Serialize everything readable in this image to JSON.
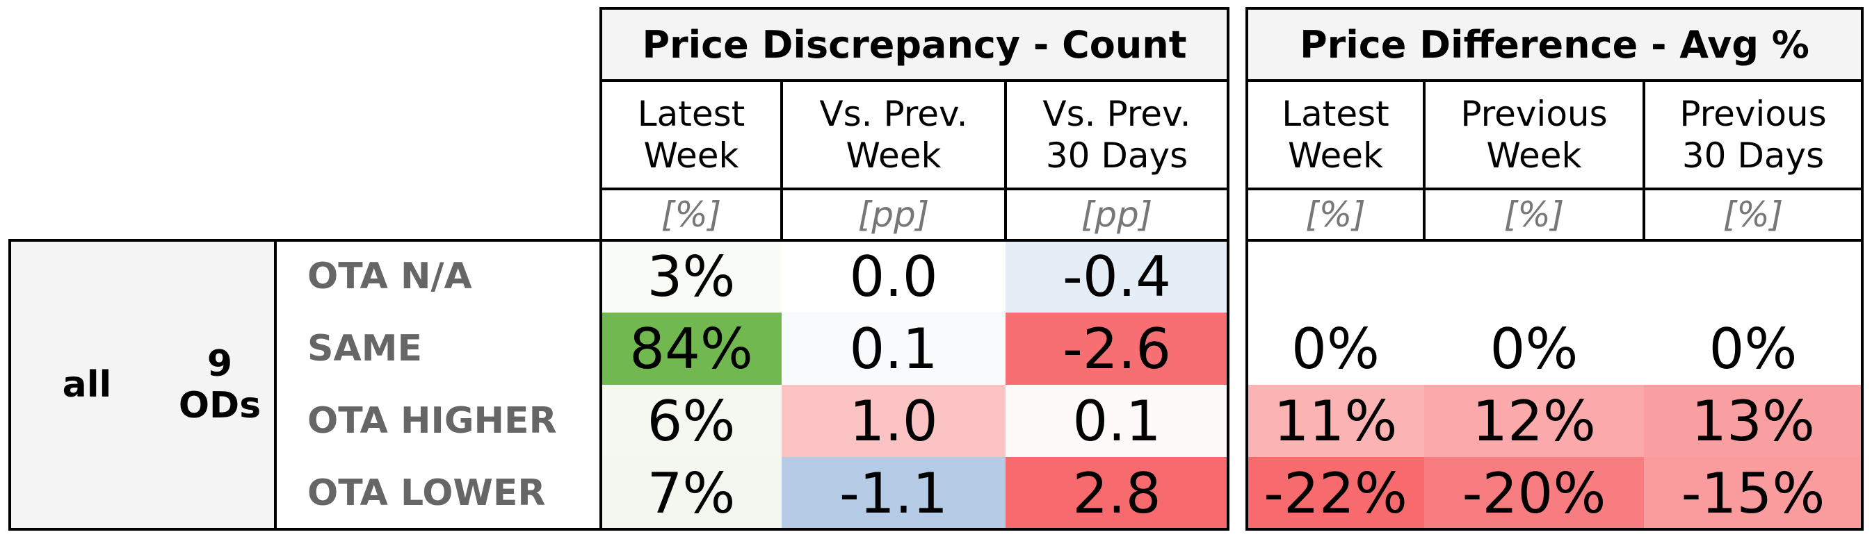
{
  "chart_data": {
    "type": "table",
    "groups": [
      {
        "title": "Price Discrepancy - Count",
        "columns": [
          {
            "label": "Latest\nWeek",
            "unit": "[%]"
          },
          {
            "label": "Vs. Prev.\nWeek",
            "unit": "[pp]"
          },
          {
            "label": "Vs. Prev.\n30 Days",
            "unit": "[pp]"
          }
        ]
      },
      {
        "title": "Price Difference - Avg %",
        "columns": [
          {
            "label": "Latest\nWeek",
            "unit": "[%]"
          },
          {
            "label": "Previous\nWeek",
            "unit": "[%]"
          },
          {
            "label": "Previous\n30 Days",
            "unit": "[%]"
          }
        ]
      }
    ],
    "row_group": {
      "segment": "all",
      "ods": "9\nODs"
    },
    "rows": [
      {
        "label": "OTA N/A",
        "count": [
          {
            "text": "3%",
            "color": "#f9fbf7"
          },
          {
            "text": "0.0",
            "color": "#ffffff"
          },
          {
            "text": "-0.4",
            "color": "#e5edf6"
          }
        ],
        "avg": [
          {
            "text": "",
            "color": "#ffffff"
          },
          {
            "text": "",
            "color": "#ffffff"
          },
          {
            "text": "",
            "color": "#ffffff"
          }
        ]
      },
      {
        "label": "SAME",
        "count": [
          {
            "text": "84%",
            "color": "#72b851"
          },
          {
            "text": "0.1",
            "color": "#f8fafc"
          },
          {
            "text": "-2.6",
            "color": "#f76f72"
          }
        ],
        "avg": [
          {
            "text": "0%",
            "color": "#ffffff"
          },
          {
            "text": "0%",
            "color": "#ffffff"
          },
          {
            "text": "0%",
            "color": "#ffffff"
          }
        ]
      },
      {
        "label": "OTA HIGHER",
        "count": [
          {
            "text": "6%",
            "color": "#f4f8f1"
          },
          {
            "text": "1.0",
            "color": "#fbc3c4"
          },
          {
            "text": "0.1",
            "color": "#fef9f9"
          }
        ],
        "avg": [
          {
            "text": "11%",
            "color": "#fbb3b4"
          },
          {
            "text": "12%",
            "color": "#fba9aa"
          },
          {
            "text": "13%",
            "color": "#fa9fa1"
          }
        ]
      },
      {
        "label": "OTA LOWER",
        "count": [
          {
            "text": "7%",
            "color": "#f3f7ef"
          },
          {
            "text": "-1.1",
            "color": "#b6cbe6"
          },
          {
            "text": "2.8",
            "color": "#f76b6e"
          }
        ],
        "avg": [
          {
            "text": "-22%",
            "color": "#f76b6e"
          },
          {
            "text": "-20%",
            "color": "#f87d80"
          },
          {
            "text": "-15%",
            "color": "#fa9b9d"
          }
        ]
      }
    ]
  }
}
